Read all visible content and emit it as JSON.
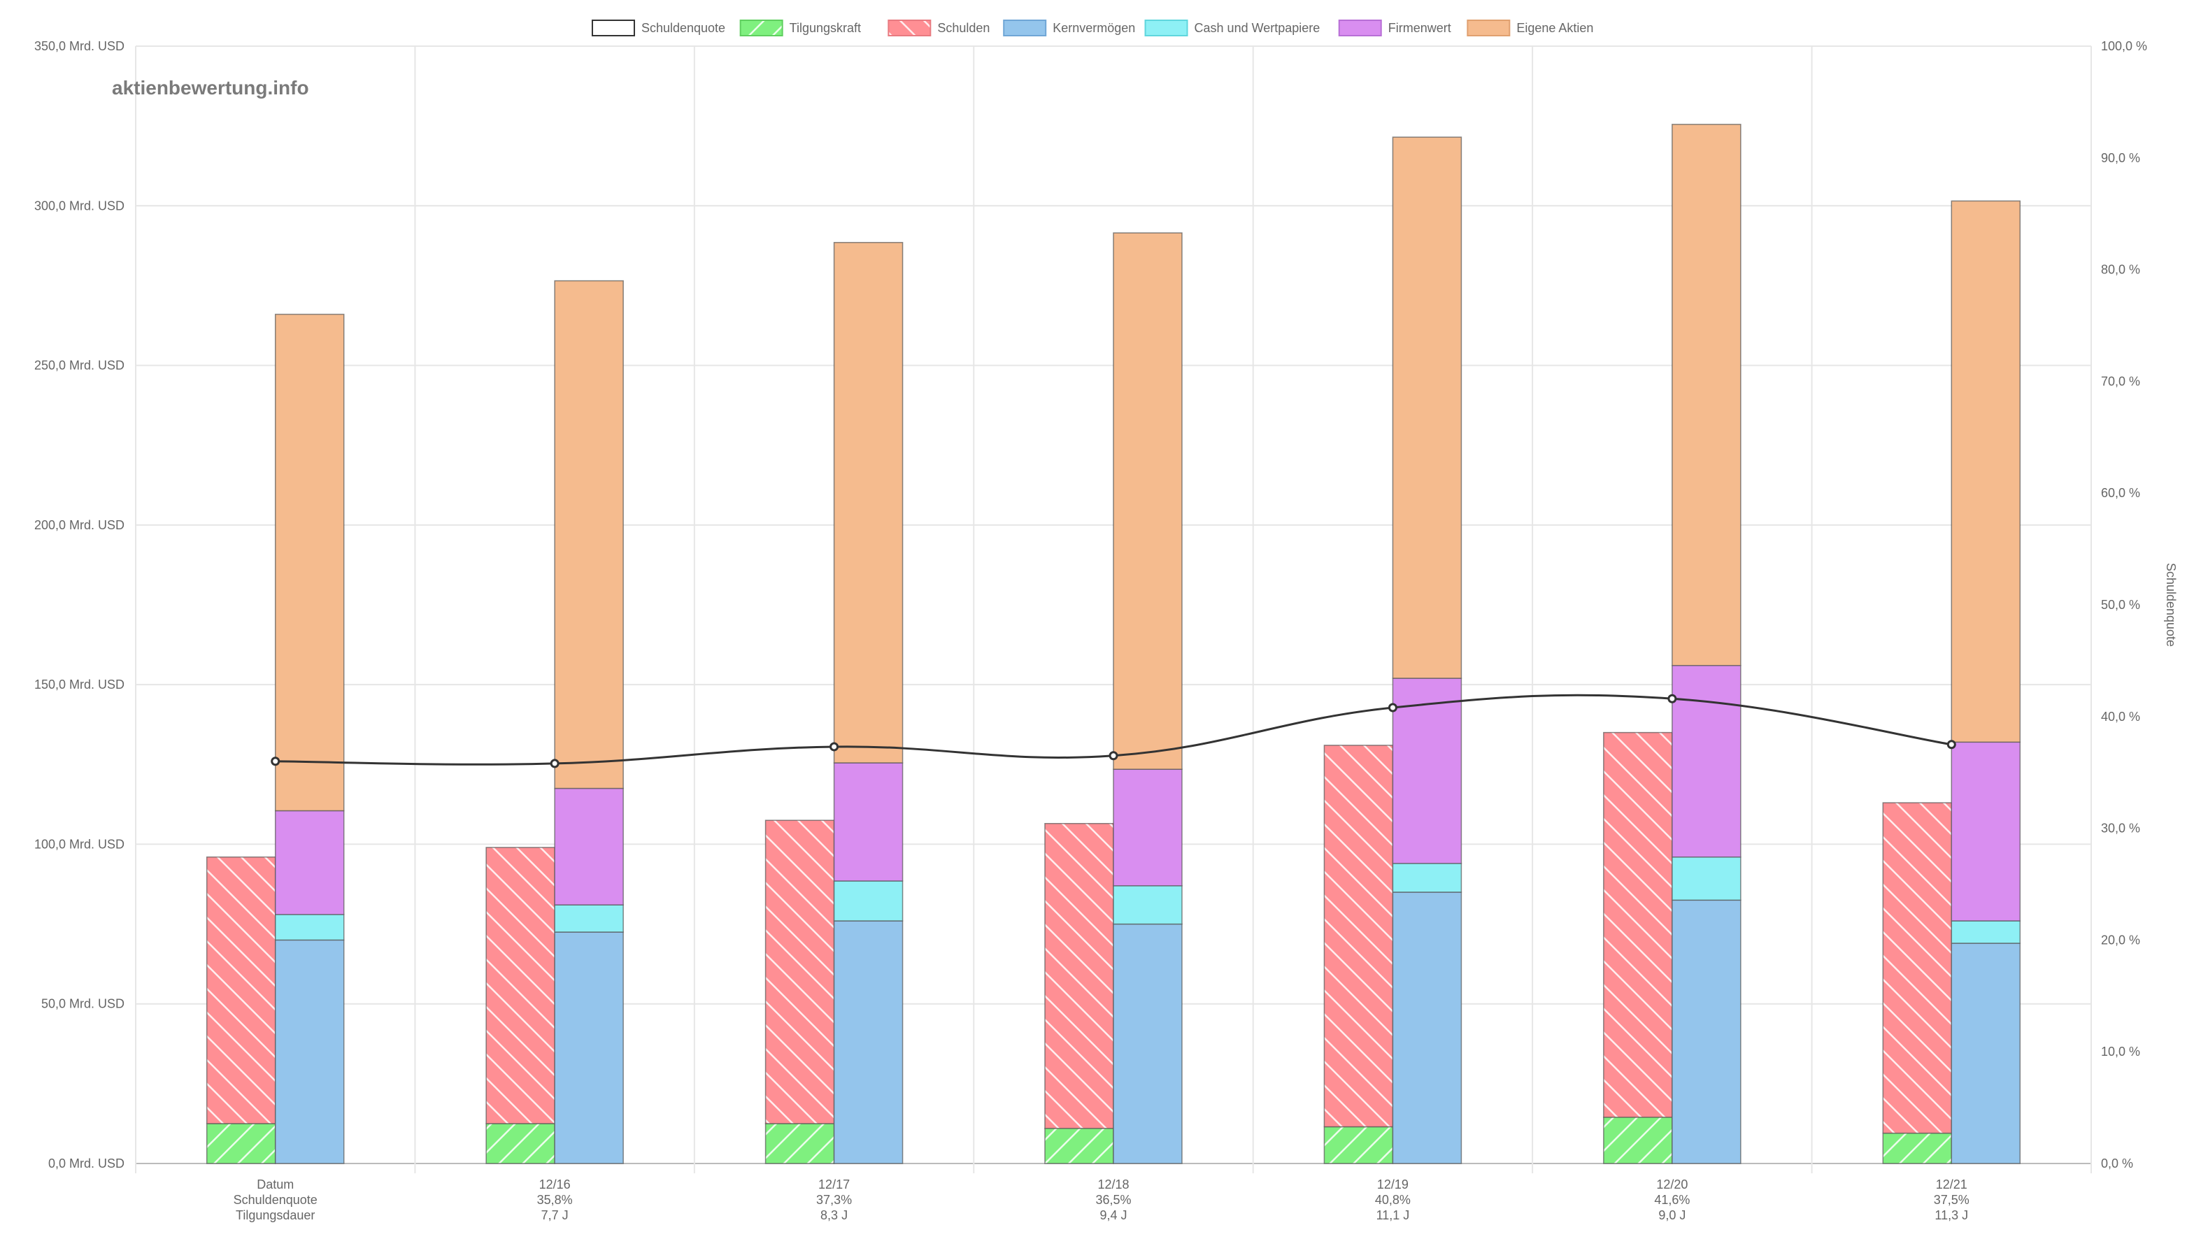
{
  "watermark": "aktienbewertung.info",
  "legend": [
    {
      "label": "Schuldenquote",
      "fill": "#ffffff",
      "stroke": "#333333",
      "pattern": "none"
    },
    {
      "label": "Tilgungskraft",
      "fill": "#7ff07f",
      "stroke": "#5fcf5f",
      "pattern": "hatch-right"
    },
    {
      "label": "Schulden",
      "fill": "#ff8f94",
      "stroke": "#e87a80",
      "pattern": "hatch-left"
    },
    {
      "label": "Kernvermögen",
      "fill": "#94c5ec",
      "stroke": "#6fa6d6",
      "pattern": "none"
    },
    {
      "label": "Cash und Wertpapiere",
      "fill": "#8ef0f5",
      "stroke": "#5fd6dd",
      "pattern": "none"
    },
    {
      "label": "Firmenwert",
      "fill": "#d98ef0",
      "stroke": "#b86fd6",
      "pattern": "none"
    },
    {
      "label": "Eigene Aktien",
      "fill": "#f5bb8e",
      "stroke": "#e0a06f",
      "pattern": "none"
    }
  ],
  "chart_data": {
    "type": "bar",
    "categories": [
      "Datum",
      "12/16",
      "12/17",
      "12/18",
      "12/19",
      "12/20",
      "12/21"
    ],
    "x_sublabels": {
      "schuldenquote": [
        "Schuldenquote",
        "35,8%",
        "37,3%",
        "36,5%",
        "40,8%",
        "41,6%",
        "37,5%"
      ],
      "tilgungsdauer": [
        "Tilgungsdauer",
        "7,7 J",
        "8,3 J",
        "9,4 J",
        "11,1 J",
        "9,0 J",
        "11,3 J"
      ]
    },
    "y_left": {
      "min": 0,
      "max": 350,
      "step": 50,
      "tick_labels": [
        "0,0 Mrd. USD",
        "50,0 Mrd. USD",
        "100,0 Mrd. USD",
        "150,0 Mrd. USD",
        "200,0 Mrd. USD",
        "250,0 Mrd. USD",
        "300,0 Mrd. USD",
        "350,0 Mrd. USD"
      ]
    },
    "y_right": {
      "label": "Schuldenquote",
      "min": 0,
      "max": 100,
      "step": 10,
      "tick_labels": [
        "0,0 %",
        "10,0 %",
        "20,0 %",
        "30,0 %",
        "40,0 %",
        "50,0 %",
        "60,0 %",
        "70,0 %",
        "80,0 %",
        "90,0 %",
        "100,0 %"
      ]
    },
    "stacks": {
      "debt": {
        "Tilgungskraft": [
          12.5,
          12.5,
          12.5,
          11.0,
          11.5,
          14.5,
          9.5
        ],
        "Schulden": [
          83.5,
          86.5,
          95.0,
          95.5,
          119.5,
          120.5,
          103.5
        ]
      },
      "assets": {
        "Kernvermögen": [
          70.0,
          72.5,
          76.0,
          75.0,
          85.0,
          82.5,
          69.0
        ],
        "Cash und Wertpapiere": [
          8.0,
          8.5,
          12.5,
          12.0,
          9.0,
          13.5,
          7.0
        ],
        "Firmenwert": [
          32.5,
          36.5,
          37.0,
          36.5,
          58.0,
          60.0,
          56.0
        ],
        "Eigene Aktien": [
          155.5,
          159.0,
          163.0,
          168.0,
          169.5,
          169.5,
          169.5
        ]
      }
    },
    "line": {
      "name": "Schuldenquote",
      "values": [
        36.0,
        35.8,
        37.3,
        36.5,
        40.8,
        41.6,
        37.5
      ],
      "color": "#333333"
    },
    "grid": true,
    "legend_position": "top-center"
  }
}
